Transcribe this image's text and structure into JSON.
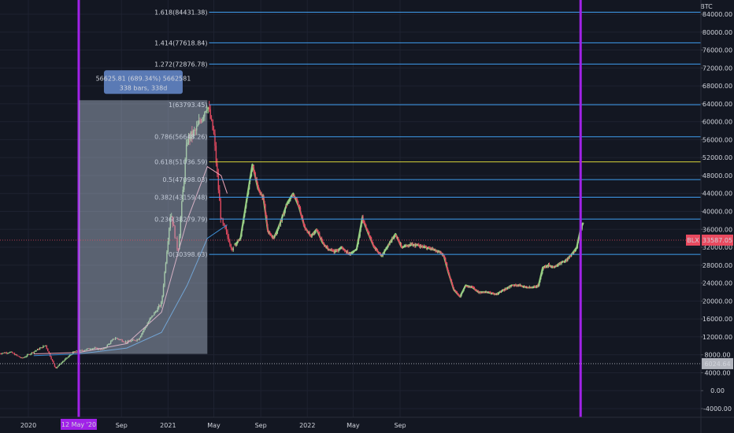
{
  "chart_data": {
    "type": "line",
    "symbol": "BTC",
    "y_axis": {
      "ticks": [
        84000,
        80000,
        76000,
        72000,
        68000,
        64000,
        60000,
        56000,
        52000,
        48000,
        44000,
        40000,
        36000,
        32000,
        28000,
        24000,
        20000,
        16000,
        12000,
        8000,
        4000,
        0,
        -4000
      ],
      "tick_labels": [
        "84000.00",
        "80000.00",
        "76000.00",
        "72000.00",
        "68000.00",
        "64000.00",
        "60000.00",
        "56000.00",
        "52000.00",
        "48000.00",
        "44000.00",
        "40000.00",
        "36000.00",
        "32000.00",
        "28000.00",
        "24000.00",
        "20000.00",
        "16000.00",
        "12000.00",
        "8000.00",
        "4000.00",
        "0.00",
        "-4000.00"
      ],
      "range": [
        -6500,
        87000
      ]
    },
    "x_axis": {
      "tick_labels": [
        {
          "label": "2020",
          "date": "2020-01-01"
        },
        {
          "label": "Sep",
          "date": "2020-09-01"
        },
        {
          "label": "2021",
          "date": "2021-01-01"
        },
        {
          "label": "May",
          "date": "2021-05-01"
        },
        {
          "label": "Sep",
          "date": "2021-09-01"
        },
        {
          "label": "2022",
          "date": "2022-01-01"
        },
        {
          "label": "May",
          "date": "2022-05-01"
        },
        {
          "label": "Sep",
          "date": "2022-09-01"
        }
      ],
      "highlight_label": "12 May '20"
    },
    "fib_levels": [
      {
        "label": "1.618(84431.38)",
        "value": 84431.38
      },
      {
        "label": "1.414(77618.84)",
        "value": 77618.84
      },
      {
        "label": "1.272(72876.78)",
        "value": 72876.78
      },
      {
        "label": "1(63793.45)",
        "value": 63793.45
      },
      {
        "label": "0.786(56648.26)",
        "value": 56648.26
      },
      {
        "label": "0.618(51036.59)",
        "value": 51036.59
      },
      {
        "label": "0.5(47098.03)",
        "value": 47098.03
      },
      {
        "label": "0.382(43159.48)",
        "value": 43159.48
      },
      {
        "label": "0.236(38279.79)",
        "value": 38279.79
      },
      {
        "label": "0(30398.63)",
        "value": 30398.63
      }
    ],
    "price_tags": [
      {
        "label": "BLX",
        "value_label": "33587.05",
        "value": 33587.05,
        "color": "#e84a5f"
      },
      {
        "value_label": "6024.64",
        "value": 6024.64,
        "color": "#b2b5be"
      }
    ],
    "measure_box": {
      "line1": "56625.81 (689.34%) 5662581",
      "line2": "338 bars, 338d",
      "from_value": 8200,
      "to_value": 64800
    },
    "historical_series": [
      [
        "2019-10-15",
        8300
      ],
      [
        "2019-11-15",
        8600
      ],
      [
        "2019-12-15",
        7200
      ],
      [
        "2020-01-15",
        8700
      ],
      [
        "2020-02-15",
        10100
      ],
      [
        "2020-03-12",
        5000
      ],
      [
        "2020-03-31",
        6500
      ],
      [
        "2020-04-30",
        8700
      ],
      [
        "2020-05-12",
        8800
      ],
      [
        "2020-06-15",
        9500
      ],
      [
        "2020-07-15",
        9200
      ],
      [
        "2020-08-15",
        11800
      ],
      [
        "2020-09-15",
        10800
      ],
      [
        "2020-10-15",
        11500
      ],
      [
        "2020-11-15",
        16000
      ],
      [
        "2020-12-15",
        19500
      ],
      [
        "2021-01-08",
        40000
      ],
      [
        "2021-01-27",
        31000
      ],
      [
        "2021-02-20",
        56000
      ],
      [
        "2021-03-15",
        58000
      ],
      [
        "2021-04-14",
        64000
      ],
      [
        "2021-05-01",
        57000
      ],
      [
        "2021-05-20",
        38000
      ],
      [
        "2021-06-22",
        31000
      ]
    ],
    "projection_series": [
      [
        "2021-06-25",
        32500
      ],
      [
        "2021-07-10",
        34000
      ],
      [
        "2021-07-25",
        42000
      ],
      [
        "2021-08-10",
        50500
      ],
      [
        "2021-08-25",
        45000
      ],
      [
        "2021-09-08",
        43000
      ],
      [
        "2021-09-20",
        35500
      ],
      [
        "2021-10-05",
        34000
      ],
      [
        "2021-10-20",
        37000
      ],
      [
        "2021-11-10",
        42000
      ],
      [
        "2021-11-25",
        44000
      ],
      [
        "2021-12-10",
        41000
      ],
      [
        "2021-12-25",
        36500
      ],
      [
        "2022-01-10",
        34500
      ],
      [
        "2022-01-25",
        36000
      ],
      [
        "2022-02-10",
        33000
      ],
      [
        "2022-02-25",
        31500
      ],
      [
        "2022-03-15",
        31000
      ],
      [
        "2022-04-01",
        32000
      ],
      [
        "2022-04-20",
        30500
      ],
      [
        "2022-05-10",
        31500
      ],
      [
        "2022-05-25",
        38500
      ],
      [
        "2022-06-10",
        35000
      ],
      [
        "2022-06-25",
        32000
      ],
      [
        "2022-07-15",
        30000
      ],
      [
        "2022-08-05",
        33000
      ],
      [
        "2022-08-20",
        35000
      ],
      [
        "2022-09-05",
        32000
      ],
      [
        "2022-09-25",
        32500
      ],
      [
        "2022-10-15",
        32500
      ],
      [
        "2022-11-05",
        32000
      ],
      [
        "2022-11-25",
        31500
      ],
      [
        "2022-12-15",
        31000
      ],
      [
        "2022-12-25",
        30000
      ],
      [
        "2023-01-05",
        26500
      ],
      [
        "2023-01-20",
        22500
      ],
      [
        "2023-02-05",
        21000
      ],
      [
        "2023-02-20",
        23500
      ],
      [
        "2023-03-10",
        23000
      ],
      [
        "2023-03-25",
        22000
      ],
      [
        "2023-04-15",
        22000
      ],
      [
        "2023-05-10",
        21500
      ],
      [
        "2023-06-01",
        22500
      ],
      [
        "2023-06-20",
        23500
      ],
      [
        "2023-07-10",
        23500
      ],
      [
        "2023-07-30",
        23000
      ],
      [
        "2023-08-15",
        23000
      ],
      [
        "2023-08-30",
        23500
      ],
      [
        "2023-09-10",
        27500
      ],
      [
        "2023-09-25",
        28000
      ],
      [
        "2023-10-10",
        27500
      ],
      [
        "2023-10-25",
        28500
      ],
      [
        "2023-11-10",
        29000
      ],
      [
        "2023-11-25",
        30500
      ],
      [
        "2023-12-08",
        32000
      ],
      [
        "2023-12-18",
        36000
      ],
      [
        "2023-12-25",
        37500
      ]
    ],
    "ma_fast": [
      [
        "2020-01-15",
        8200
      ],
      [
        "2020-05-12",
        8500
      ],
      [
        "2020-09-15",
        10500
      ],
      [
        "2020-12-15",
        17500
      ],
      [
        "2021-02-20",
        38000
      ],
      [
        "2021-04-14",
        50000
      ],
      [
        "2021-05-20",
        48000
      ],
      [
        "2021-06-05",
        44000
      ]
    ],
    "ma_slow": [
      [
        "2020-01-15",
        7800
      ],
      [
        "2020-05-12",
        8200
      ],
      [
        "2020-09-15",
        9500
      ],
      [
        "2020-12-15",
        13000
      ],
      [
        "2021-02-20",
        23500
      ],
      [
        "2021-04-14",
        34000
      ],
      [
        "2021-06-05",
        37000
      ]
    ],
    "vertical_markers": [
      "2020-05-12",
      "2023-12-18"
    ],
    "colors": {
      "background": "#131722",
      "projection": "#8fc973",
      "candle_up": "#9bd08a",
      "candle_down": "#e0495f",
      "fib_line": "#3f9ef0",
      "fib_618": "#d8d53a",
      "marker": "#a122e8",
      "ma_fast": "#f2a7ba",
      "ma_slow": "#3f8fd6"
    },
    "grid": true
  }
}
